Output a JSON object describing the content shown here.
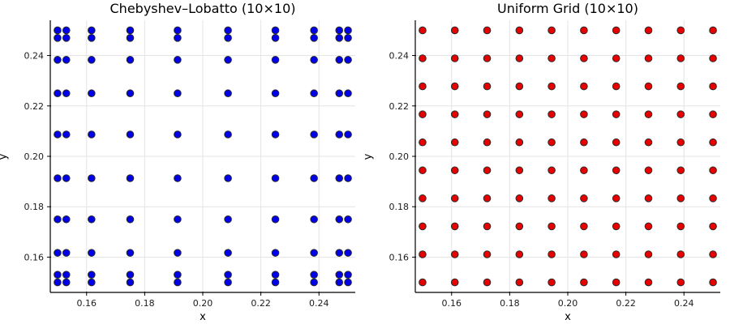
{
  "page": {
    "background": "#ffffff",
    "figure_width": 900,
    "figure_height": 400
  },
  "chart_data": [
    {
      "type": "scatter",
      "title": "Chebyshev–Lobatto (10×10)",
      "xlabel": "x",
      "ylabel": "y",
      "grid_kind": "tensor-product of nodes (10×10 = 100 points)",
      "nodes_x": [
        0.15,
        0.153015,
        0.161698,
        0.175,
        0.191318,
        0.208682,
        0.225,
        0.238302,
        0.246985,
        0.25
      ],
      "nodes_y": [
        0.15,
        0.153015,
        0.161698,
        0.175,
        0.191318,
        0.208682,
        0.225,
        0.238302,
        0.246985,
        0.25
      ],
      "xticks": [
        0.16,
        0.18,
        0.2,
        0.22,
        0.24
      ],
      "yticks": [
        0.16,
        0.18,
        0.2,
        0.22,
        0.24
      ],
      "tick_decimals": 2,
      "xlim": [
        0.1475,
        0.2525
      ],
      "ylim": [
        0.146,
        0.254
      ],
      "grid": true,
      "legend": "none",
      "marker_fill": "#0000e8",
      "marker_stroke": "#2a2a2a",
      "marker_radius": 4.3,
      "grid_color": "#e4e4e4",
      "axis_color": "#000000",
      "tick_label_color": "#1c1c1c"
    },
    {
      "type": "scatter",
      "title": "Uniform Grid (10×10)",
      "xlabel": "x",
      "ylabel": "y",
      "grid_kind": "tensor-product of nodes (10×10 = 100 points)",
      "nodes_x": [
        0.15,
        0.161111,
        0.172222,
        0.183333,
        0.194444,
        0.205556,
        0.216667,
        0.227778,
        0.238889,
        0.25
      ],
      "nodes_y": [
        0.15,
        0.161111,
        0.172222,
        0.183333,
        0.194444,
        0.205556,
        0.216667,
        0.227778,
        0.238889,
        0.25
      ],
      "xticks": [
        0.16,
        0.18,
        0.2,
        0.22,
        0.24
      ],
      "yticks": [
        0.16,
        0.18,
        0.2,
        0.22,
        0.24
      ],
      "tick_decimals": 2,
      "xlim": [
        0.1475,
        0.2525
      ],
      "ylim": [
        0.146,
        0.254
      ],
      "grid": true,
      "legend": "none",
      "marker_fill": "#e60000",
      "marker_stroke": "#2a2a2a",
      "marker_radius": 4.3,
      "grid_color": "#e4e4e4",
      "axis_color": "#000000",
      "tick_label_color": "#1c1c1c"
    }
  ]
}
